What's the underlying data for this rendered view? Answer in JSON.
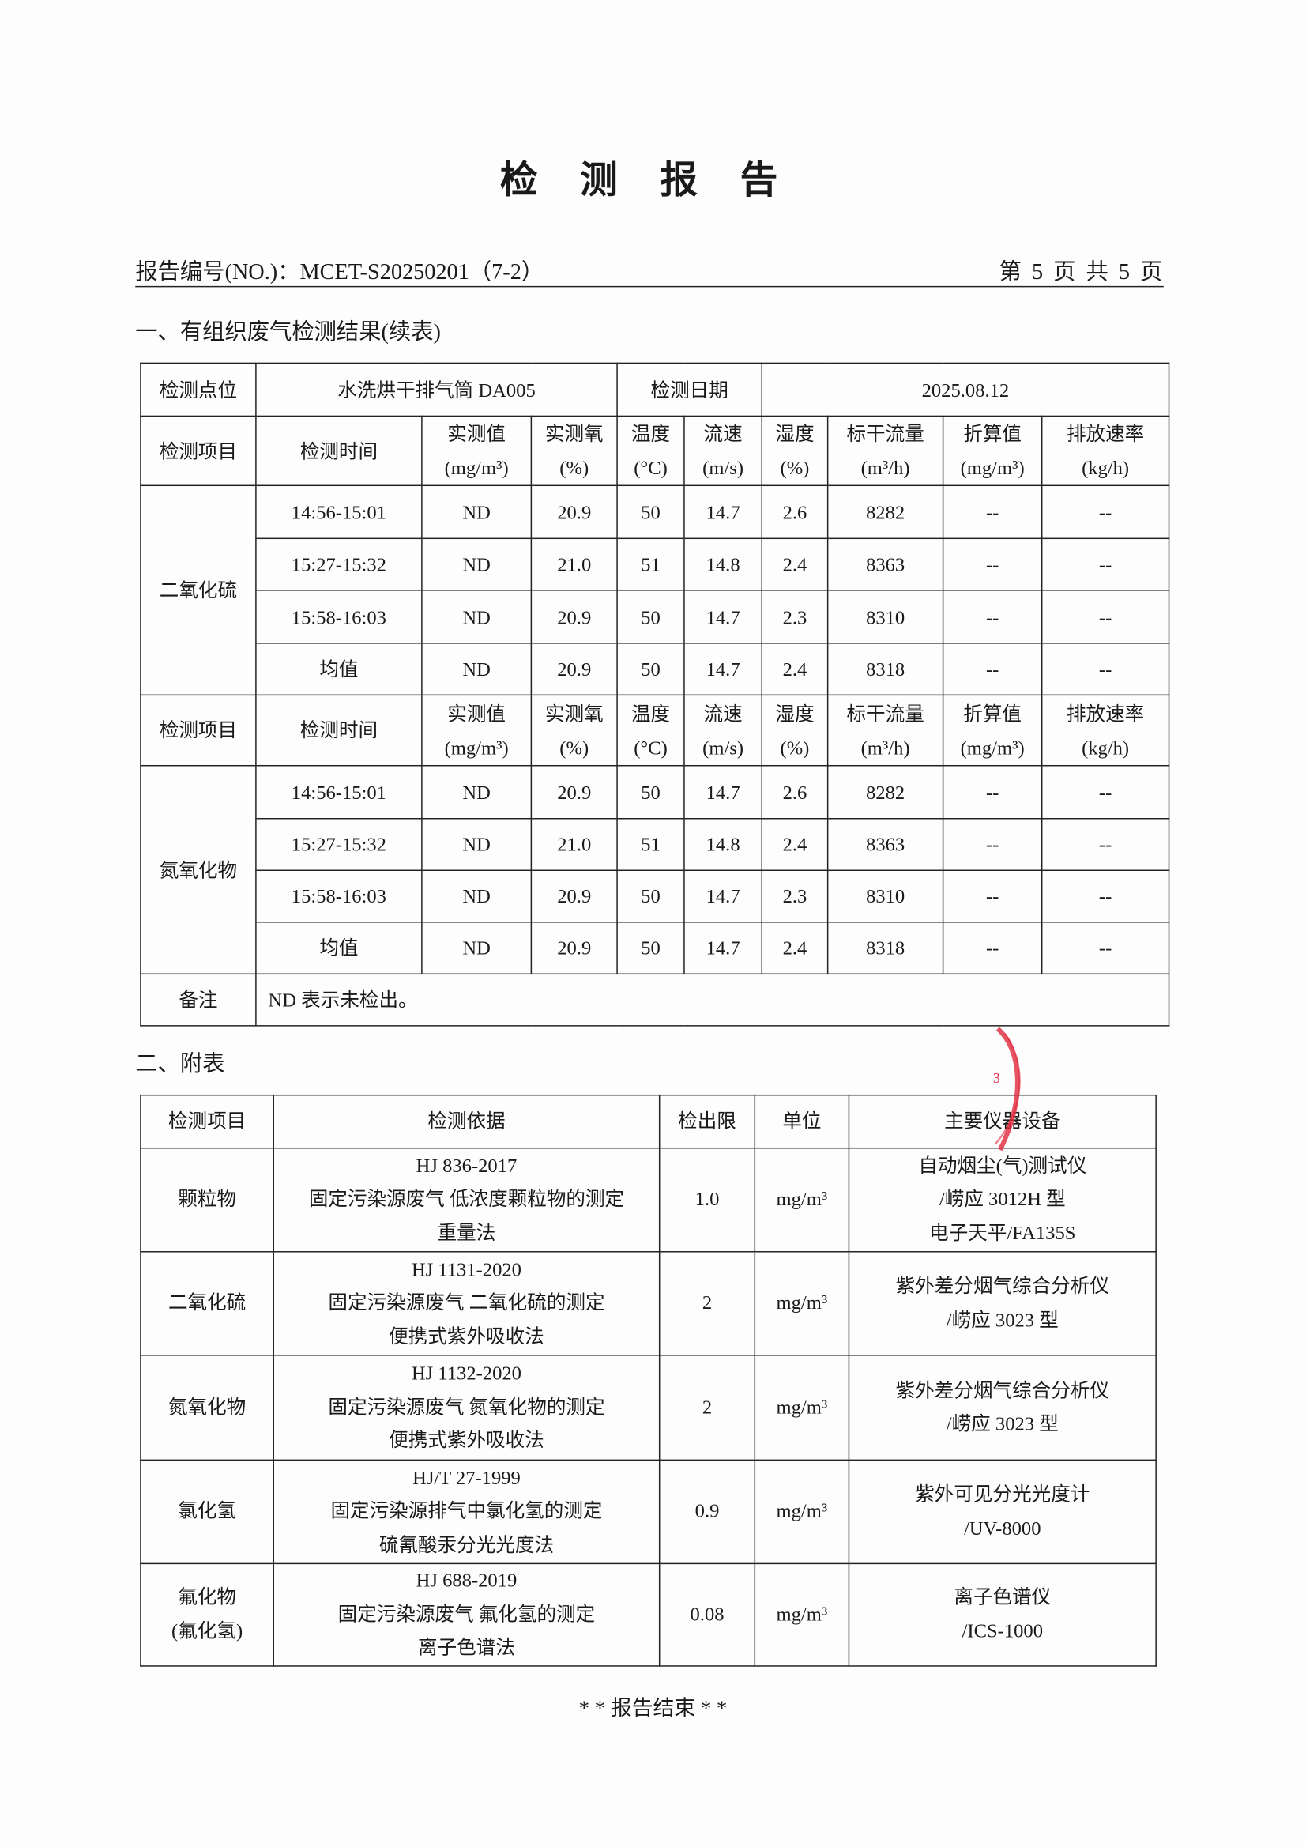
{
  "title": "检 测 报 告",
  "header": {
    "report_no": "报告编号(NO.)：MCET-S20250201（7-2）",
    "page_info": "第 5 页 共 5 页"
  },
  "section1": {
    "heading": "一、有组织废气检测结果(续表)",
    "point_label": "检测点位",
    "point_value": "水洗烘干排气筒 DA005",
    "date_label": "检测日期",
    "date_value": "2025.08.12",
    "columns": [
      "检测项目",
      "检测时间",
      "实测值\n(mg/m³)",
      "实测氧\n(%)",
      "温度\n(°C)",
      "流速\n(m/s)",
      "湿度\n(%)",
      "标干流量\n(m³/h)",
      "折算值\n(mg/m³)",
      "排放速率\n(kg/h)"
    ],
    "groups": [
      {
        "item": "二氧化硫",
        "rows": [
          [
            "14:56-15:01",
            "ND",
            "20.9",
            "50",
            "14.7",
            "2.6",
            "8282",
            "--",
            "--"
          ],
          [
            "15:27-15:32",
            "ND",
            "21.0",
            "51",
            "14.8",
            "2.4",
            "8363",
            "--",
            "--"
          ],
          [
            "15:58-16:03",
            "ND",
            "20.9",
            "50",
            "14.7",
            "2.3",
            "8310",
            "--",
            "--"
          ],
          [
            "均值",
            "ND",
            "20.9",
            "50",
            "14.7",
            "2.4",
            "8318",
            "--",
            "--"
          ]
        ]
      },
      {
        "item": "氮氧化物",
        "rows": [
          [
            "14:56-15:01",
            "ND",
            "20.9",
            "50",
            "14.7",
            "2.6",
            "8282",
            "--",
            "--"
          ],
          [
            "15:27-15:32",
            "ND",
            "21.0",
            "51",
            "14.8",
            "2.4",
            "8363",
            "--",
            "--"
          ],
          [
            "15:58-16:03",
            "ND",
            "20.9",
            "50",
            "14.7",
            "2.3",
            "8310",
            "--",
            "--"
          ],
          [
            "均值",
            "ND",
            "20.9",
            "50",
            "14.7",
            "2.4",
            "8318",
            "--",
            "--"
          ]
        ]
      }
    ],
    "remark_label": "备注",
    "remark_value": "ND 表示未检出。"
  },
  "section2": {
    "heading": "二、附表",
    "columns": [
      "检测项目",
      "检测依据",
      "检出限",
      "单位",
      "主要仪器设备"
    ],
    "rows": [
      [
        "颗粒物",
        "HJ 836-2017\n固定污染源废气 低浓度颗粒物的测定\n重量法",
        "1.0",
        "mg/m³",
        "自动烟尘(气)测试仪\n/崂应 3012H 型\n电子天平/FA135S"
      ],
      [
        "二氧化硫",
        "HJ 1131-2020\n固定污染源废气 二氧化硫的测定\n便携式紫外吸收法",
        "2",
        "mg/m³",
        "紫外差分烟气综合分析仪\n/崂应 3023 型"
      ],
      [
        "氮氧化物",
        "HJ 1132-2020\n固定污染源废气 氮氧化物的测定\n便携式紫外吸收法",
        "2",
        "mg/m³",
        "紫外差分烟气综合分析仪\n/崂应 3023 型"
      ],
      [
        "氯化氢",
        "HJ/T 27-1999\n固定污染源排气中氯化氢的测定\n硫氰酸汞分光光度法",
        "0.9",
        "mg/m³",
        "紫外可见分光光度计\n/UV-8000"
      ],
      [
        "氟化物\n(氟化氢)",
        "HJ 688-2019\n固定污染源废气 氟化氢的测定\n离子色谱法",
        "0.08",
        "mg/m³",
        "离子色谱仪\n/ICS-1000"
      ]
    ]
  },
  "footer": "* *  报告结束  * *",
  "colors": {
    "text": "#1a1a1a",
    "border": "#222222",
    "stamp": "#e0283c"
  }
}
